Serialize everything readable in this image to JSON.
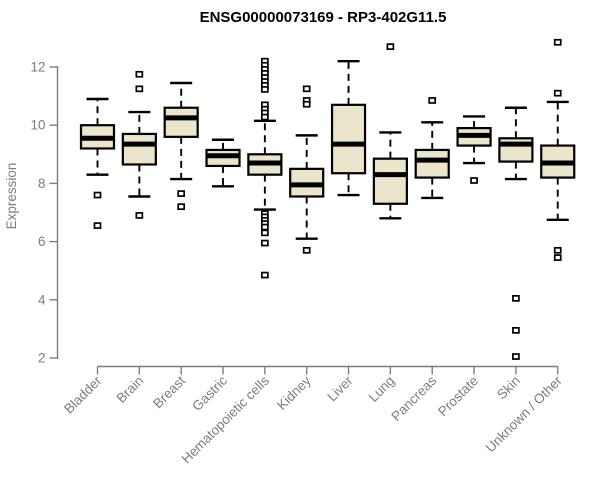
{
  "chart_data": {
    "type": "boxplot",
    "title": "ENSG00000073169 - RP3-402G11.5",
    "ylabel": "Expression",
    "xlabel": "",
    "ylim": [
      2,
      12
    ],
    "yticks": [
      2,
      4,
      6,
      8,
      10,
      12
    ],
    "grid": false,
    "legend": "none",
    "categories": [
      "Bladder",
      "Brain",
      "Breast",
      "Gastric",
      "Hematopoietic cells",
      "Kidney",
      "Liver",
      "Lung",
      "Pancreas",
      "Prostate",
      "Skin",
      "Unknown / Other"
    ],
    "series": [
      {
        "category": "Bladder",
        "whisker_low": 8.3,
        "q1": 9.2,
        "median": 9.55,
        "q3": 10.0,
        "whisker_high": 10.9,
        "outliers": [
          7.6,
          6.55
        ]
      },
      {
        "category": "Brain",
        "whisker_low": 7.55,
        "q1": 8.65,
        "median": 9.35,
        "q3": 9.7,
        "whisker_high": 10.45,
        "outliers": [
          11.75,
          11.25,
          6.9
        ]
      },
      {
        "category": "Breast",
        "whisker_low": 8.15,
        "q1": 9.6,
        "median": 10.25,
        "q3": 10.6,
        "whisker_high": 11.45,
        "outliers": [
          7.65,
          7.2
        ]
      },
      {
        "category": "Gastric",
        "whisker_low": 7.9,
        "q1": 8.6,
        "median": 8.95,
        "q3": 9.15,
        "whisker_high": 9.5,
        "outliers": []
      },
      {
        "category": "Hematopoietic cells",
        "whisker_low": 7.1,
        "q1": 8.3,
        "median": 8.7,
        "q3": 9.0,
        "whisker_high": 10.15,
        "outliers": [
          12.2,
          12.06,
          11.92,
          11.78,
          11.64,
          11.5,
          11.37,
          11.23,
          10.7,
          10.55,
          10.42,
          10.28,
          6.96,
          6.85,
          6.73,
          6.62,
          6.5,
          6.3,
          5.95,
          4.85
        ]
      },
      {
        "category": "Kidney",
        "whisker_low": 6.1,
        "q1": 7.55,
        "median": 7.95,
        "q3": 8.5,
        "whisker_high": 9.65,
        "outliers": [
          11.25,
          10.85,
          10.72,
          5.7
        ]
      },
      {
        "category": "Liver",
        "whisker_low": 7.6,
        "q1": 8.35,
        "median": 9.35,
        "q3": 10.7,
        "whisker_high": 12.2,
        "outliers": []
      },
      {
        "category": "Lung",
        "whisker_low": 6.8,
        "q1": 7.3,
        "median": 8.3,
        "q3": 8.85,
        "whisker_high": 9.75,
        "outliers": [
          12.7
        ]
      },
      {
        "category": "Pancreas",
        "whisker_low": 7.5,
        "q1": 8.2,
        "median": 8.8,
        "q3": 9.15,
        "whisker_high": 10.1,
        "outliers": [
          10.85
        ]
      },
      {
        "category": "Prostate",
        "whisker_low": 8.7,
        "q1": 9.3,
        "median": 9.65,
        "q3": 9.9,
        "whisker_high": 10.3,
        "outliers": [
          8.1
        ]
      },
      {
        "category": "Skin",
        "whisker_low": 8.15,
        "q1": 8.75,
        "median": 9.35,
        "q3": 9.55,
        "whisker_high": 10.6,
        "outliers": [
          4.05,
          2.95,
          2.05
        ]
      },
      {
        "category": "Unknown / Other",
        "whisker_low": 6.75,
        "q1": 8.2,
        "median": 8.7,
        "q3": 9.3,
        "whisker_high": 10.8,
        "outliers": [
          12.85,
          11.1,
          5.7,
          5.45
        ]
      }
    ],
    "colors": {
      "box_fill": "#EAE5CB",
      "box_stroke": "#000000",
      "median": "#000000",
      "whisker": "#000000",
      "outlier_fill": "#FFFFFF",
      "outlier_stroke": "#000000",
      "axis": "#7D7D7D",
      "title": "#000000",
      "background": "#FFFFFF"
    }
  }
}
